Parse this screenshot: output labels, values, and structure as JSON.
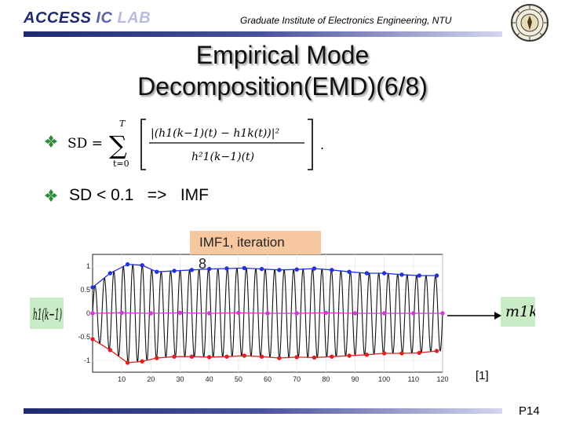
{
  "header": {
    "brand_part1": "ACCESS",
    "brand_part2": " IC",
    "brand_part3": " LAB",
    "institute": "Graduate Institute of Electronics Engineering, NTU"
  },
  "slide": {
    "title_line1": "Empirical Mode",
    "title_line2": "Decomposition(EMD)(6/8)"
  },
  "bullets": [
    {
      "formula": {
        "lhs": "SD =",
        "sum_upper": "T",
        "sum_lower": "t=0",
        "numerator": "|(h1(k−1)(t) − h1k(t))|²",
        "denominator": "h²1(k−1)(t)"
      }
    },
    {
      "text": "SD < 0.1   =>   IMF"
    }
  ],
  "figure": {
    "title": "IMF1, iteration",
    "title_cont": "8",
    "input_label": "h1(k−1)",
    "output_label": "m1k",
    "reference": "[1]"
  },
  "chart_data": {
    "type": "line",
    "xlim": [
      0,
      120
    ],
    "ylim": [
      -1.25,
      1.25
    ],
    "x_ticks": [
      10,
      20,
      30,
      40,
      50,
      60,
      70,
      80,
      90,
      100,
      110,
      120
    ],
    "y_ticks": [
      {
        "value": 1,
        "label": "1"
      },
      {
        "value": 0.5,
        "label": "0.5"
      },
      {
        "value": 0,
        "label": "0"
      },
      {
        "value": -0.5,
        "label": "-0.5"
      },
      {
        "value": -1,
        "label": "-1"
      }
    ],
    "series": [
      {
        "role": "signal",
        "color": "#111111",
        "periods": 37,
        "upper_envelope_x": [
          0,
          6,
          12,
          17,
          22,
          28,
          34,
          40,
          46,
          52,
          58,
          64,
          70,
          76,
          82,
          88,
          94,
          100,
          106,
          112,
          118
        ],
        "upper_envelope_y": [
          0.55,
          0.85,
          1.04,
          1.02,
          0.88,
          0.9,
          0.92,
          0.94,
          0.95,
          0.96,
          0.94,
          0.92,
          0.93,
          0.95,
          0.92,
          0.88,
          0.85,
          0.85,
          0.82,
          0.8,
          0.8
        ],
        "lower_envelope_x": [
          0,
          6,
          12,
          17,
          22,
          28,
          34,
          40,
          46,
          52,
          58,
          64,
          70,
          76,
          82,
          88,
          94,
          100,
          106,
          112,
          118
        ],
        "lower_envelope_y": [
          -0.55,
          -0.78,
          -1.05,
          -1.02,
          -0.95,
          -0.92,
          -0.92,
          -0.93,
          -0.92,
          -0.9,
          -0.92,
          -0.95,
          -0.93,
          -0.94,
          -0.92,
          -0.9,
          -0.88,
          -0.85,
          -0.85,
          -0.84,
          -0.8
        ]
      },
      {
        "role": "upper envelope",
        "color": "#2233dd",
        "x": [
          0,
          6,
          12,
          17,
          22,
          28,
          34,
          40,
          46,
          52,
          58,
          64,
          70,
          76,
          82,
          88,
          94,
          100,
          106,
          112,
          118
        ],
        "y": [
          0.55,
          0.85,
          1.04,
          1.02,
          0.88,
          0.9,
          0.92,
          0.94,
          0.95,
          0.96,
          0.94,
          0.92,
          0.93,
          0.95,
          0.92,
          0.88,
          0.85,
          0.85,
          0.82,
          0.8,
          0.8
        ]
      },
      {
        "role": "lower envelope",
        "color": "#dd2222",
        "x": [
          0,
          6,
          12,
          17,
          22,
          28,
          34,
          40,
          46,
          52,
          58,
          64,
          70,
          76,
          82,
          88,
          94,
          100,
          106,
          112,
          118
        ],
        "y": [
          -0.55,
          -0.78,
          -1.05,
          -1.02,
          -0.95,
          -0.92,
          -0.92,
          -0.93,
          -0.92,
          -0.9,
          -0.92,
          -0.95,
          -0.93,
          -0.94,
          -0.92,
          -0.9,
          -0.88,
          -0.85,
          -0.85,
          -0.84,
          -0.8
        ]
      },
      {
        "role": "mean",
        "color": "#dd33dd",
        "x": [
          0,
          10,
          20,
          30,
          40,
          50,
          60,
          70,
          80,
          90,
          100,
          110,
          120
        ],
        "y": [
          0.0,
          0.01,
          0.0,
          0.01,
          0.0,
          0.01,
          0.0,
          0.0,
          0.01,
          0.0,
          0.0,
          0.0,
          0.0
        ]
      }
    ]
  },
  "footer": {
    "page": "P14"
  },
  "colors": {
    "bar_dark": "#1f2a6e",
    "label_green": "#c9ebc6",
    "title_box": "#f7c7a0"
  }
}
